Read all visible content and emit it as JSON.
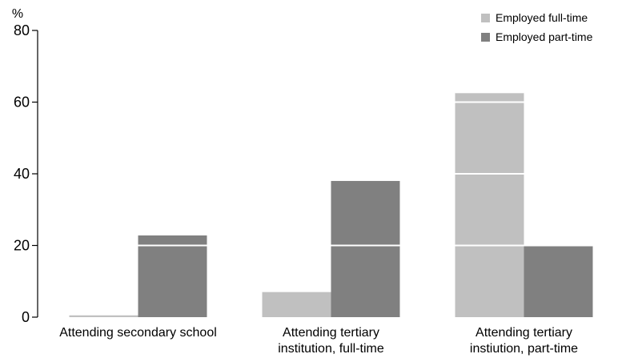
{
  "chart_data": {
    "type": "bar",
    "ylabel": "%",
    "ylim": [
      0,
      80
    ],
    "yticks": [
      0,
      20,
      40,
      60,
      80
    ],
    "grid": "white lines across bars",
    "legend_position": "top-right",
    "categories": [
      [
        "Attending secondary school"
      ],
      [
        "Attending tertiary",
        "institution, full-time"
      ],
      [
        "Attending tertiary",
        "instiution, part-time"
      ]
    ],
    "series": [
      {
        "name": "Employed full-time",
        "color": "#c0c0c0",
        "values": [
          0.5,
          7,
          62.5
        ]
      },
      {
        "name": "Employed part-time",
        "color": "#808080",
        "values": [
          22.8,
          38,
          19.8
        ]
      }
    ]
  }
}
